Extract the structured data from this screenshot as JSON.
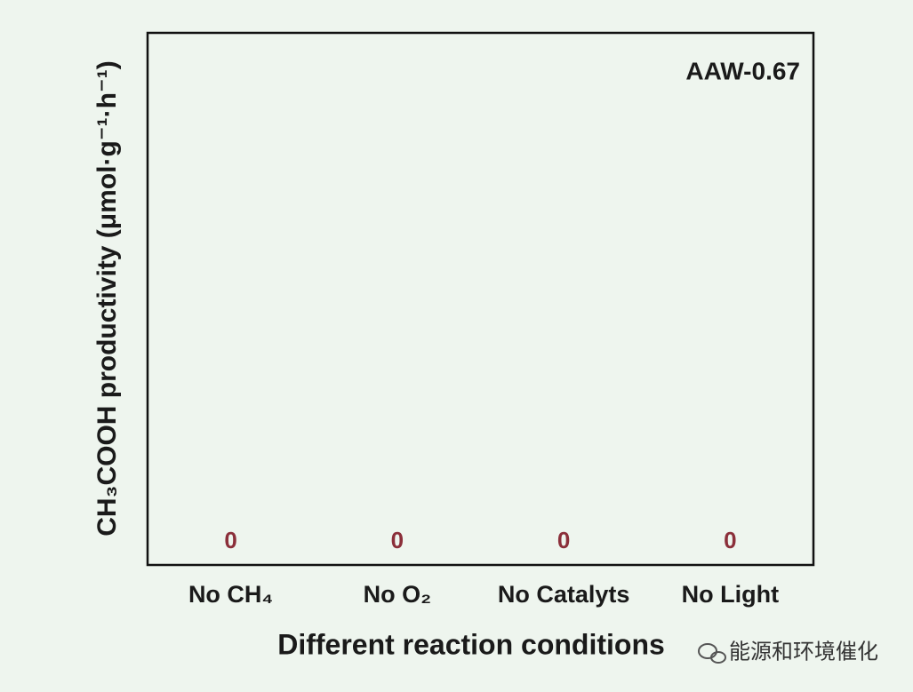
{
  "chart_data": {
    "type": "bar",
    "y_label": "CH₃COOH productivity (μmol·g⁻¹·h⁻¹)",
    "x_label": "Different reaction conditions",
    "annotation": "AAW-0.67",
    "watermark": "能源和环境催化",
    "categories": [
      "No CH₄",
      "No O₂",
      "No Catalyts",
      "No Light"
    ],
    "values": [
      0,
      0,
      0,
      0
    ],
    "color": "#b06a6a",
    "value_label_color": "#8b2f3a"
  }
}
